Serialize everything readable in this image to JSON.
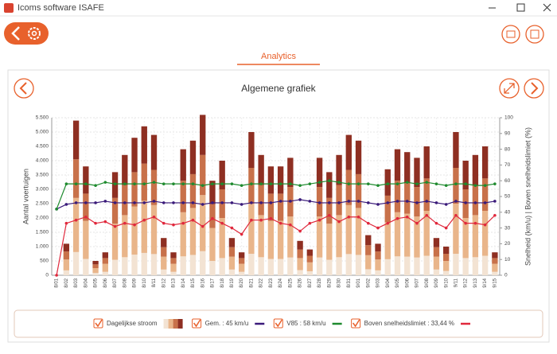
{
  "window": {
    "title": "Icoms software ISAFE"
  },
  "tab": "Analytics",
  "chart_data": {
    "type": "combo",
    "title": "Algemene grafiek",
    "ylabel": "Aantal voertuigen",
    "y2label": "Snelheid (km/u) | Boven snelheidslimiet (%)",
    "categories": [
      "8/01",
      "8/02",
      "8/03",
      "8/04",
      "8/05",
      "8/06",
      "8/07",
      "8/08",
      "8/09",
      "8/10",
      "8/11",
      "8/12",
      "8/13",
      "8/14",
      "8/15",
      "8/16",
      "8/17",
      "8/18",
      "8/19",
      "8/20",
      "8/21",
      "8/22",
      "8/23",
      "8/24",
      "8/25",
      "8/26",
      "8/27",
      "8/28",
      "8/29",
      "8/30",
      "8/31",
      "9/01",
      "9/02",
      "9/03",
      "9/04",
      "9/05",
      "9/06",
      "9/07",
      "9/08",
      "9/09",
      "9/10",
      "9/11",
      "9/12",
      "9/13",
      "9/14",
      "9/15"
    ],
    "ylim": [
      0,
      5500
    ],
    "yticks": [
      0,
      500,
      {
        "value": 1000,
        "label": "1.000"
      },
      {
        "value": 1500,
        "label": "1.500"
      },
      {
        "value": 2000,
        "label": "2.000"
      },
      {
        "value": 2500,
        "label": "2.500"
      },
      {
        "value": 3000,
        "label": "3.000"
      },
      {
        "value": 3500,
        "label": "3.500"
      },
      {
        "value": 4000,
        "label": "4.000"
      },
      {
        "value": 4500,
        "label": "4.500"
      },
      {
        "value": 5000,
        "label": "5.000"
      },
      {
        "value": 5500,
        "label": "5.500"
      }
    ],
    "y2lim": [
      0,
      100
    ],
    "y2ticks": [
      0,
      10,
      20,
      30,
      40,
      50,
      60,
      70,
      80,
      90,
      100
    ],
    "grid": true,
    "bar_series": {
      "name": "Dagelijkse stroom",
      "segments": [
        {
          "color": "#f3e3d3",
          "values": [
            0,
            170,
            810,
            570,
            80,
            120,
            540,
            630,
            720,
            780,
            740,
            200,
            120,
            660,
            710,
            840,
            500,
            600,
            200,
            120,
            750,
            630,
            570,
            570,
            620,
            180,
            140,
            620,
            540,
            630,
            740,
            710,
            210,
            170,
            560,
            660,
            650,
            620,
            680,
            200,
            150,
            750,
            600,
            630,
            680,
            120
          ]
        },
        {
          "color": "#e9b58a",
          "values": [
            0,
            380,
            1890,
            1330,
            170,
            280,
            1260,
            1470,
            1680,
            1820,
            1710,
            450,
            280,
            1540,
            1640,
            1960,
            1150,
            1400,
            450,
            280,
            1750,
            1470,
            1330,
            1330,
            1430,
            420,
            310,
            1430,
            1260,
            1470,
            1710,
            1640,
            490,
            380,
            1290,
            1540,
            1500,
            1430,
            1570,
            450,
            350,
            1750,
            1400,
            1470,
            1570,
            280
          ]
        },
        {
          "color": "#c8714a",
          "values": [
            0,
            280,
            1350,
            950,
            130,
            200,
            900,
            1050,
            1200,
            1300,
            1230,
            330,
            200,
            1100,
            1180,
            1400,
            830,
            1000,
            330,
            200,
            1250,
            1050,
            950,
            950,
            1030,
            300,
            230,
            1030,
            900,
            1050,
            1230,
            1180,
            350,
            280,
            930,
            1100,
            1080,
            1030,
            1130,
            330,
            250,
            1250,
            1000,
            1050,
            1130,
            200
          ]
        },
        {
          "color": "#8e2f22",
          "values": [
            0,
            270,
            1350,
            950,
            120,
            200,
            900,
            1050,
            1200,
            1300,
            1220,
            320,
            200,
            1100,
            1170,
            1400,
            820,
            1000,
            320,
            200,
            1250,
            1050,
            950,
            950,
            1020,
            300,
            220,
            1020,
            900,
            1050,
            1220,
            1170,
            350,
            270,
            920,
            1100,
            1070,
            1020,
            1120,
            320,
            250,
            1250,
            1000,
            1050,
            1120,
            200
          ]
        }
      ]
    },
    "line_series": [
      {
        "name": "Gem. : 45 km/u",
        "color": "#3a1a7a",
        "axis": "y2",
        "values": [
          42,
          45,
          46,
          46,
          46,
          47,
          46,
          46,
          46,
          46,
          47,
          46,
          46,
          46,
          46,
          45,
          46,
          46,
          46,
          45,
          46,
          46,
          46,
          47,
          47,
          48,
          47,
          46,
          46,
          46,
          47,
          47,
          46,
          45,
          46,
          47,
          47,
          46,
          47,
          46,
          45,
          47,
          46,
          46,
          46,
          47
        ]
      },
      {
        "name": "V85 : 58 km/u",
        "color": "#1e8a2e",
        "axis": "y2",
        "values": [
          42,
          58,
          58,
          58,
          57,
          59,
          58,
          58,
          58,
          58,
          59,
          58,
          58,
          58,
          58,
          57,
          58,
          58,
          58,
          57,
          58,
          58,
          58,
          58,
          58,
          57,
          58,
          59,
          60,
          59,
          58,
          58,
          58,
          57,
          58,
          58,
          59,
          58,
          59,
          58,
          57,
          58,
          58,
          57,
          57,
          58
        ]
      },
      {
        "name": "Boven snelheidslimiet : 33,44 %",
        "color": "#e0283c",
        "axis": "y2",
        "values": [
          0,
          33,
          35,
          37,
          33,
          34,
          31,
          33,
          32,
          35,
          37,
          33,
          32,
          33,
          35,
          31,
          36,
          33,
          30,
          26,
          35,
          35,
          36,
          33,
          32,
          28,
          33,
          35,
          38,
          34,
          37,
          37,
          33,
          30,
          33,
          36,
          37,
          33,
          38,
          33,
          30,
          38,
          33,
          33,
          32,
          38
        ]
      }
    ]
  }
}
